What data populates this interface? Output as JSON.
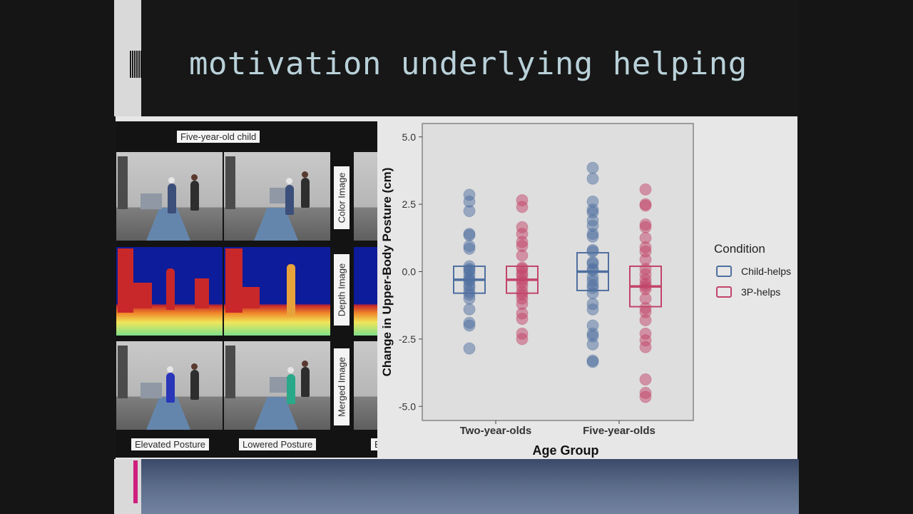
{
  "slide": {
    "title": "motivation underlying helping"
  },
  "photo_panel": {
    "top_label": "Five-year-old child",
    "row_labels": [
      "Color Image",
      "Depth Image",
      "Merged Image"
    ],
    "bottom_labels": [
      "Elevated Posture",
      "Lowered Posture",
      "E"
    ]
  },
  "colors": {
    "child_helps": "#4f6fa0",
    "threep_helps": "#c2446a",
    "plot_bg": "#dedede",
    "title_text": "#b9d1d9"
  },
  "chart_data": {
    "type": "scatter",
    "xlabel": "Age Group",
    "ylabel": "Change in Upper-Body Posture (cm)",
    "categories": [
      "Two-year-olds",
      "Five-year-olds"
    ],
    "ylim": [
      -5.5,
      5.5
    ],
    "yticks": [
      5.0,
      2.5,
      0.0,
      -2.5,
      -5.0
    ],
    "ytick_labels": [
      "5.0",
      "2.5",
      "0.0",
      "-2.5",
      "-5.0"
    ],
    "legend": {
      "title": "Condition",
      "position": "right"
    },
    "series": [
      {
        "name": "Child-helps",
        "color": "#4f6fa0",
        "boxes": [
          {
            "category": "Two-year-olds",
            "mean": -0.3,
            "lower": -0.8,
            "upper": 0.2
          },
          {
            "category": "Five-year-olds",
            "mean": 0.0,
            "lower": -0.7,
            "upper": 0.7
          }
        ],
        "points": [
          {
            "category": "Two-year-olds",
            "values": [
              2.85,
              2.6,
              2.25,
              1.4,
              1.35,
              0.95,
              0.85,
              0.2,
              0.1,
              0.05,
              -0.05,
              -0.2,
              -0.3,
              -0.35,
              -0.5,
              -0.6,
              -0.75,
              -0.85,
              -1.0,
              -1.4,
              -1.9,
              -2.0,
              -2.85
            ]
          },
          {
            "category": "Five-year-olds",
            "values": [
              3.85,
              3.45,
              2.6,
              2.3,
              2.2,
              1.9,
              1.7,
              1.4,
              1.3,
              0.8,
              0.75,
              0.35,
              0.3,
              0.1,
              0.05,
              -0.2,
              -0.35,
              -0.5,
              -0.6,
              -0.8,
              -1.2,
              -1.4,
              -2.0,
              -2.3,
              -2.4,
              -2.7,
              -3.3,
              -3.35
            ]
          }
        ]
      },
      {
        "name": "3P-helps",
        "color": "#c2446a",
        "boxes": [
          {
            "category": "Two-year-olds",
            "mean": -0.3,
            "lower": -0.8,
            "upper": 0.2
          },
          {
            "category": "Five-year-olds",
            "mean": -0.55,
            "lower": -1.3,
            "upper": 0.2
          }
        ],
        "points": [
          {
            "category": "Two-year-olds",
            "values": [
              2.65,
              2.4,
              1.65,
              1.4,
              1.1,
              0.95,
              0.6,
              0.15,
              0.1,
              -0.05,
              -0.15,
              -0.3,
              -0.4,
              -0.55,
              -0.75,
              -0.85,
              -1.0,
              -1.2,
              -1.55,
              -1.75,
              -2.3,
              -2.5
            ]
          },
          {
            "category": "Five-year-olds",
            "values": [
              3.05,
              2.5,
              2.45,
              1.75,
              1.65,
              1.25,
              0.9,
              0.75,
              0.45,
              0.1,
              -0.1,
              -0.3,
              -0.45,
              -0.55,
              -0.65,
              -1.0,
              -1.35,
              -1.5,
              -1.8,
              -2.3,
              -2.55,
              -2.8,
              -4.0,
              -4.5,
              -4.65
            ]
          }
        ]
      }
    ]
  }
}
